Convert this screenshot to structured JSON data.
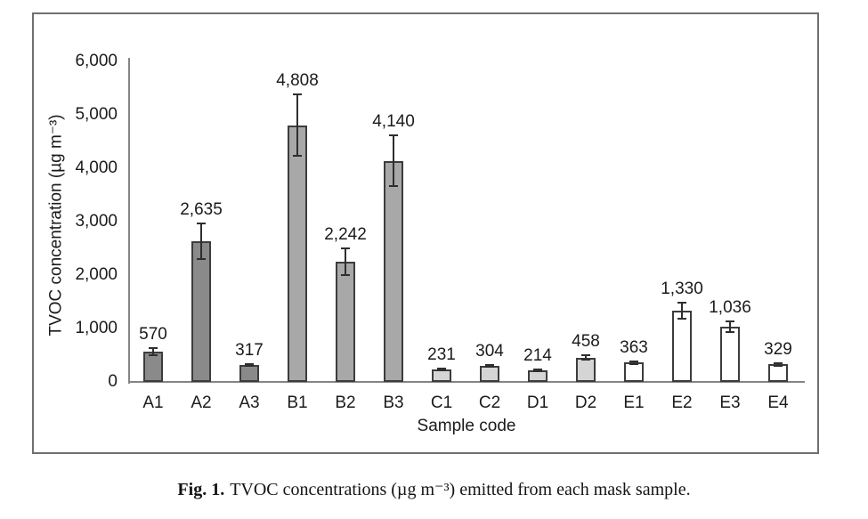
{
  "figure": {
    "caption_prefix": "Fig. 1.",
    "caption_text": "TVOC concentrations (µg m⁻³) emitted from each mask sample."
  },
  "chart_data": {
    "type": "bar",
    "title": "",
    "xlabel": "Sample code",
    "ylabel": "TVOC concentration (µg m⁻³)",
    "ylim": [
      0,
      6000
    ],
    "ytick_labels": [
      "0",
      "1,000",
      "2,000",
      "3,000",
      "4,000",
      "5,000",
      "6,000"
    ],
    "ytick_values": [
      0,
      1000,
      2000,
      3000,
      4000,
      5000,
      6000
    ],
    "grid": false,
    "legend_position": "none",
    "error_bars": true,
    "categories": [
      "A1",
      "A2",
      "A3",
      "B1",
      "B2",
      "B3",
      "C1",
      "C2",
      "D1",
      "D2",
      "E1",
      "E2",
      "E3",
      "E4"
    ],
    "values": [
      570,
      2635,
      317,
      4808,
      2242,
      4140,
      231,
      304,
      214,
      458,
      363,
      1330,
      1036,
      329
    ],
    "value_labels": [
      "570",
      "2,635",
      "317",
      "4,808",
      "2,242",
      "4,140",
      "231",
      "304",
      "214",
      "458",
      "363",
      "1,330",
      "1,036",
      "329"
    ],
    "errors": [
      65,
      330,
      20,
      570,
      250,
      470,
      15,
      20,
      12,
      45,
      25,
      150,
      100,
      25
    ],
    "bar_fills": [
      "#8a8a8a",
      "#8a8a8a",
      "#8a8a8a",
      "#a8a8a8",
      "#a8a8a8",
      "#a8a8a8",
      "#d5d5d5",
      "#d5d5d5",
      "#d5d5d5",
      "#d5d5d5",
      "#ffffff",
      "#ffffff",
      "#ffffff",
      "#ffffff"
    ],
    "bar_border_color": "#3c3c3c",
    "axis_color": "#858585",
    "text_color": "#1b1b1b"
  }
}
